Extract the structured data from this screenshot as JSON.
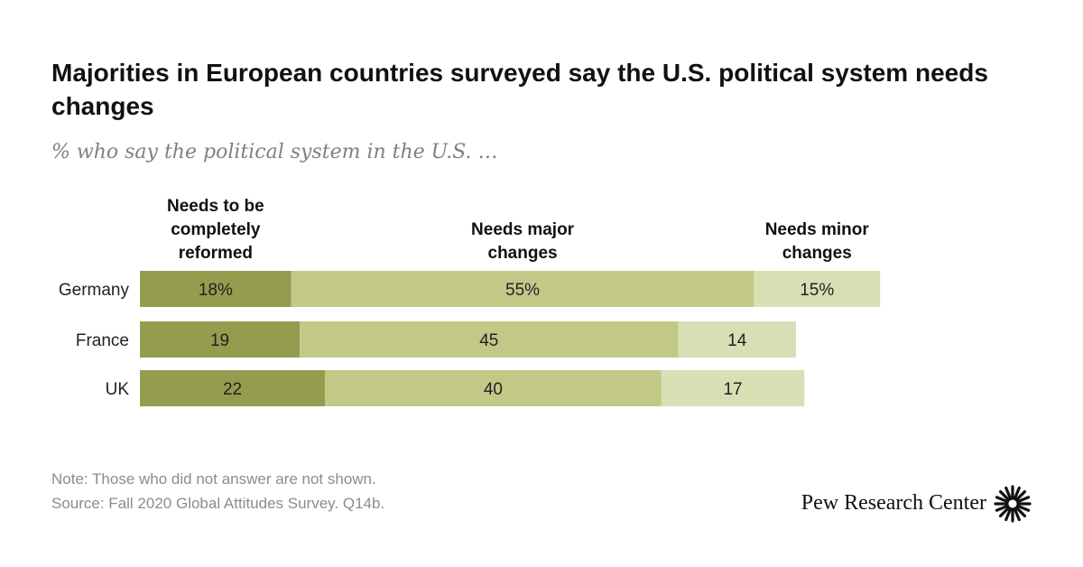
{
  "title": "Majorities in European countries surveyed say the U.S. political system needs changes",
  "subtitle": "% who say the political system in the U.S. …",
  "chart_data": {
    "type": "bar",
    "orientation": "horizontal",
    "stacked": true,
    "categories": [
      "Germany",
      "France",
      "UK"
    ],
    "series": [
      {
        "name": "Needs to be completely reformed",
        "header_lines": [
          "Needs to be",
          "completely",
          "reformed"
        ],
        "values": [
          18,
          19,
          22
        ],
        "labels": [
          "18%",
          "19",
          "22"
        ],
        "color": "#969c4e"
      },
      {
        "name": "Needs major changes",
        "header_lines": [
          "Needs major",
          "changes"
        ],
        "values": [
          55,
          45,
          40
        ],
        "labels": [
          "55%",
          "45",
          "40"
        ],
        "color": "#c2c987"
      },
      {
        "name": "Needs minor changes",
        "header_lines": [
          "Needs minor",
          "changes"
        ],
        "values": [
          15,
          14,
          17
        ],
        "labels": [
          "15%",
          "14",
          "17"
        ],
        "color": "#d9dfb5"
      }
    ],
    "xlim": [
      0,
      100
    ],
    "grid": false,
    "legend": "column headers above bars"
  },
  "notes": {
    "note": "Note: Those who did not answer are not shown.",
    "source": "Source: Fall 2020 Global Attitudes Survey. Q14b."
  },
  "branding": {
    "name": "Pew Research Center",
    "logo_icon": "pew-sunburst-icon"
  }
}
